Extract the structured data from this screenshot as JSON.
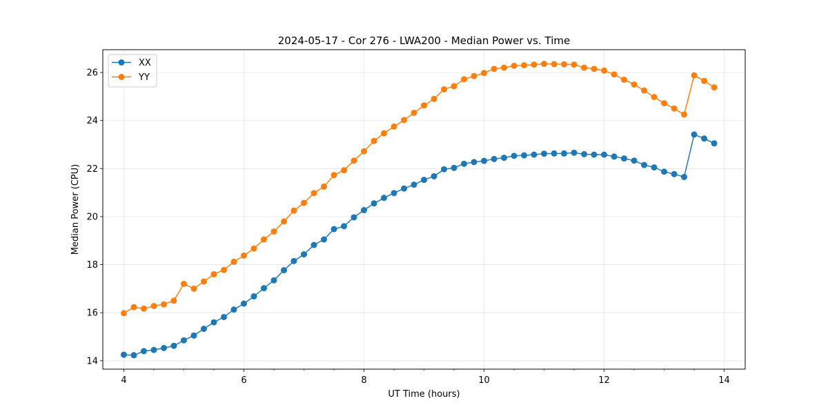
{
  "chart_data": {
    "type": "line",
    "title": "2024-05-17 - Cor 276 - LWA200 - Median Power vs. Time",
    "xlabel": "UT Time (hours)",
    "ylabel": "Median Power (CPU)",
    "xlim": [
      3.65,
      14.35
    ],
    "ylim": [
      13.65,
      26.95
    ],
    "xticks": [
      4,
      6,
      8,
      10,
      12,
      14
    ],
    "yticks": [
      14,
      16,
      18,
      20,
      22,
      24,
      26
    ],
    "grid": true,
    "legend_position": "top-left",
    "x": [
      4.0,
      4.167,
      4.333,
      4.5,
      4.667,
      4.833,
      5.0,
      5.167,
      5.333,
      5.5,
      5.667,
      5.833,
      6.0,
      6.167,
      6.333,
      6.5,
      6.667,
      6.833,
      7.0,
      7.167,
      7.333,
      7.5,
      7.667,
      7.833,
      8.0,
      8.167,
      8.333,
      8.5,
      8.667,
      8.833,
      9.0,
      9.167,
      9.333,
      9.5,
      9.667,
      9.833,
      10.0,
      10.167,
      10.333,
      10.5,
      10.667,
      10.833,
      11.0,
      11.167,
      11.333,
      11.5,
      11.667,
      11.833,
      12.0,
      12.167,
      12.333,
      12.5,
      12.667,
      12.833,
      13.0,
      13.167,
      13.333,
      13.5,
      13.667,
      13.833
    ],
    "series": [
      {
        "name": "XX",
        "color": "#1f77b4",
        "values": [
          14.25,
          14.23,
          14.4,
          14.45,
          14.53,
          14.62,
          14.85,
          15.05,
          15.33,
          15.6,
          15.82,
          16.13,
          16.38,
          16.68,
          17.02,
          17.35,
          17.77,
          18.15,
          18.43,
          18.82,
          19.05,
          19.48,
          19.6,
          19.97,
          20.27,
          20.55,
          20.78,
          20.98,
          21.17,
          21.33,
          21.53,
          21.68,
          21.97,
          22.03,
          22.2,
          22.27,
          22.32,
          22.4,
          22.45,
          22.53,
          22.55,
          22.58,
          22.62,
          22.63,
          22.63,
          22.66,
          22.6,
          22.58,
          22.58,
          22.5,
          22.42,
          22.33,
          22.15,
          22.05,
          21.87,
          21.77,
          21.65,
          23.42,
          23.25,
          23.05
        ]
      },
      {
        "name": "YY",
        "color": "#ff7f0e",
        "values": [
          15.98,
          16.23,
          16.17,
          16.28,
          16.35,
          16.5,
          17.2,
          17.0,
          17.3,
          17.6,
          17.78,
          18.12,
          18.38,
          18.67,
          19.05,
          19.38,
          19.8,
          20.25,
          20.57,
          20.98,
          21.25,
          21.73,
          21.93,
          22.33,
          22.72,
          23.15,
          23.47,
          23.75,
          24.02,
          24.32,
          24.63,
          24.9,
          25.3,
          25.43,
          25.72,
          25.85,
          25.98,
          26.15,
          26.2,
          26.28,
          26.3,
          26.33,
          26.36,
          26.35,
          26.34,
          26.33,
          26.2,
          26.15,
          26.08,
          25.92,
          25.7,
          25.5,
          25.25,
          24.98,
          24.72,
          24.5,
          24.25,
          25.88,
          25.65,
          25.38
        ]
      }
    ]
  }
}
